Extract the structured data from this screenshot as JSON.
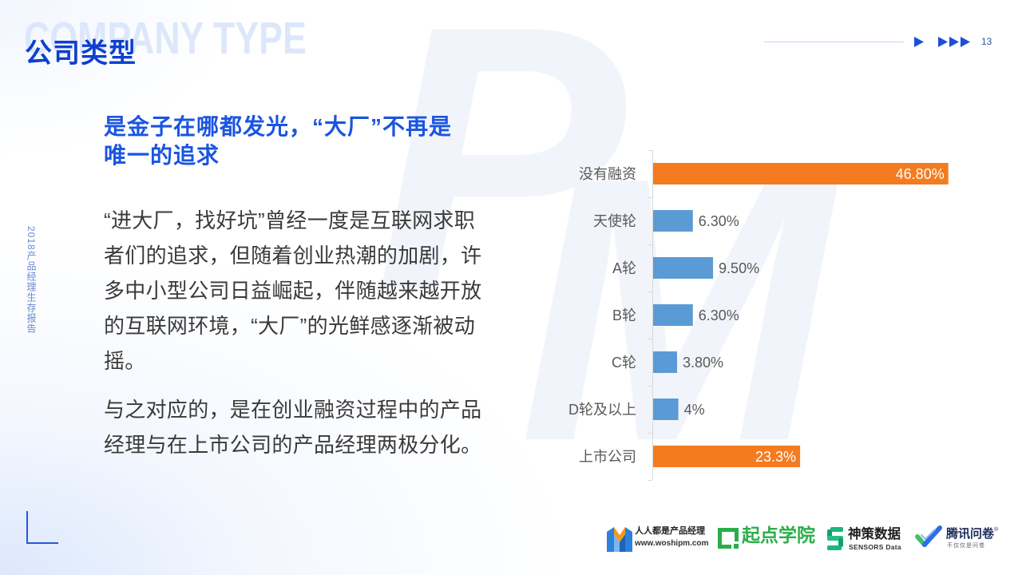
{
  "slide": {
    "watermark_title": "COMPANY TYPE",
    "title": "公司类型",
    "page_number": "13",
    "side_label": "2018产品经理生存报告",
    "background_logo_letters": [
      "P",
      "M"
    ]
  },
  "content": {
    "subheading_lines": [
      "是金子在哪都发光，“大厂”不再是",
      "唯一的追求"
    ],
    "paragraphs": [
      [
        "“进大厂，找好坑”曾经一度是互联网求职",
        "者们的追求，但随着创业热潮的加剧，许",
        "多中小型公司日益崛起，伴随越来越开放",
        "的互联网环境，“大厂”的光鲜感逐渐被动",
        "摇。"
      ],
      [
        "与之对应的，是在创业融资过程中的产品",
        "经理与在上市公司的产品经理两极分化。"
      ]
    ]
  },
  "chart_data": {
    "type": "bar",
    "orientation": "horizontal",
    "categories": [
      "没有融资",
      "天使轮",
      "A轮",
      "B轮",
      "C轮",
      "D轮及以上",
      "上市公司"
    ],
    "values": [
      46.8,
      6.3,
      9.5,
      6.3,
      3.8,
      4,
      23.3
    ],
    "value_labels": [
      "46.80%",
      "6.30%",
      "9.50%",
      "6.30%",
      "3.80%",
      "4%",
      "23.3%"
    ],
    "bar_colors": [
      "#F47B20",
      "#5B9BD5",
      "#5B9BD5",
      "#5B9BD5",
      "#5B9BD5",
      "#5B9BD5",
      "#F47B20"
    ],
    "value_axis_visible": false,
    "grid": false,
    "legend": "none"
  },
  "logos": [
    {
      "icon": "woshipm-logo-icon",
      "name": "人人都是产品经理",
      "subtitle": "www.woshipm.com"
    },
    {
      "icon": "qidian-logo-icon",
      "name": "起点学院"
    },
    {
      "icon": "sensors-logo-icon",
      "name": "神策数据",
      "subtitle": "SENSORS Data"
    },
    {
      "icon": "wenjuan-check-icon",
      "name": "腾讯问卷",
      "mark": "®",
      "subtitle": "不仅仅是问卷"
    }
  ],
  "colors": {
    "title": "#0E3FCF",
    "subheading": "#1A55E0",
    "watermark": "#DDE7FB",
    "body_text": "#3A3A3A",
    "accent": "#2956D4"
  }
}
